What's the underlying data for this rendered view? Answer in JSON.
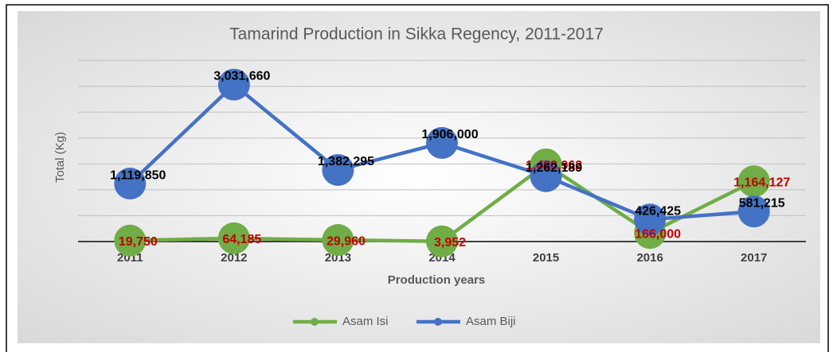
{
  "chart_data": {
    "type": "line",
    "title": "Tamarind Production in Sikka Regency, 2011-2017",
    "x_label": "Production years",
    "y_label": "Total (Kg)",
    "categories": [
      "2011",
      "2012",
      "2013",
      "2014",
      "2015",
      "2016",
      "2017"
    ],
    "series": [
      {
        "name": "Asam Isi",
        "color": "#70ad47",
        "label_color": "#c00000",
        "values": [
          19750,
          64185,
          29960,
          3952,
          1490962,
          166000,
          1164127
        ],
        "value_labels": [
          "19,750",
          "64,185",
          "29,960",
          "3,952",
          "1,490,962",
          "166,000",
          "1,164,127"
        ]
      },
      {
        "name": "Asam Biji",
        "color": "#4472c4",
        "label_color": "#000000",
        "values": [
          1119850,
          3031660,
          1382295,
          1906000,
          1262189,
          426425,
          581215
        ],
        "value_labels": [
          "1,119,850",
          "3,031,660",
          "1,382,295",
          "1,906,000",
          "1,262,189",
          "426,425",
          "581,215"
        ]
      }
    ],
    "ylim": [
      0,
      3500000
    ],
    "yticks": [
      0,
      500000,
      1000000,
      1500000,
      2000000,
      2500000,
      3000000,
      3500000
    ],
    "grid": true,
    "legend": "bottom"
  }
}
